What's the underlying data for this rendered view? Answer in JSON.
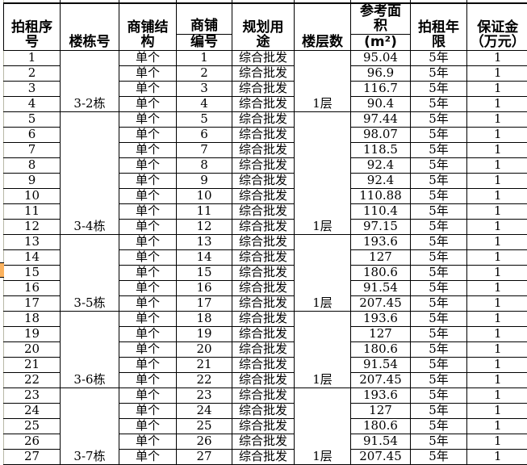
{
  "colors": {
    "red_text": "#e00000",
    "highlight_orange": "#fbb25e",
    "grid_black": "#000000",
    "gridline_gray": "#b9b9a6"
  },
  "table": {
    "headers": {
      "seq": [
        "拍租序",
        "号"
      ],
      "building": [
        "楼栋号"
      ],
      "structure": [
        "商铺结",
        "构"
      ],
      "shop_top": [
        "商铺"
      ],
      "shop_bottom": [
        "编号"
      ],
      "use": [
        "规划用",
        "途"
      ],
      "floors": [
        "楼层数"
      ],
      "area_top": [
        "参考面",
        "积"
      ],
      "area_bottom": [
        "(m²)"
      ],
      "years": [
        "拍租年",
        "限"
      ],
      "deposit": [
        "保证金",
        "（万元）"
      ]
    },
    "building_merges": [
      {
        "label": "3-2栋",
        "from": 1,
        "to": 4
      },
      {
        "label": "3-4栋",
        "from": 5,
        "to": 12
      },
      {
        "label": "3-5栋",
        "from": 13,
        "to": 17
      },
      {
        "label": "3-6栋",
        "from": 18,
        "to": 22
      },
      {
        "label": "3-7栋",
        "from": 23,
        "to": 27
      }
    ],
    "floor_merges": [
      {
        "label": "1层",
        "from": 1,
        "to": 4
      },
      {
        "label": "1层",
        "from": 5,
        "to": 12
      },
      {
        "label": "1层",
        "from": 13,
        "to": 17
      },
      {
        "label": "1层",
        "from": 18,
        "to": 22
      },
      {
        "label": "1层",
        "from": 23,
        "to": 27
      }
    ],
    "rows": [
      {
        "seq": "1",
        "structure": "单个",
        "shop": "1",
        "use": "综合批发",
        "area": "95.04",
        "years": "5年",
        "deposit": "1"
      },
      {
        "seq": "2",
        "structure": "单个",
        "shop": "2",
        "use": "综合批发",
        "area": "96.9",
        "years": "5年",
        "deposit": "1"
      },
      {
        "seq": "3",
        "structure": "单个",
        "shop": "3",
        "use": "综合批发",
        "area": "116.7",
        "years": "5年",
        "deposit": "1"
      },
      {
        "seq": "4",
        "structure": "单个",
        "shop": "4",
        "use": "综合批发",
        "area": "90.4",
        "years": "5年",
        "deposit": "1"
      },
      {
        "seq": "5",
        "structure": "单个",
        "shop": "5",
        "use": "综合批发",
        "area": "97.44",
        "years": "5年",
        "deposit": "1"
      },
      {
        "seq": "6",
        "structure": "单个",
        "shop": "6",
        "use": "综合批发",
        "area": "98.07",
        "years": "5年",
        "deposit": "1"
      },
      {
        "seq": "7",
        "structure": "单个",
        "shop": "7",
        "use": "综合批发",
        "area": "118.5",
        "years": "5年",
        "deposit": "1"
      },
      {
        "seq": "8",
        "structure": "单个",
        "shop": "8",
        "use": "综合批发",
        "area": "92.4",
        "years": "5年",
        "deposit": "1"
      },
      {
        "seq": "9",
        "structure": "单个",
        "shop": "9",
        "use": "综合批发",
        "area": "92.4",
        "years": "5年",
        "deposit": "1"
      },
      {
        "seq": "10",
        "structure": "单个",
        "shop": "10",
        "use": "综合批发",
        "area": "110.88",
        "years": "5年",
        "deposit": "1"
      },
      {
        "seq": "11",
        "structure": "单个",
        "shop": "11",
        "use": "综合批发",
        "area": "110.4",
        "years": "5年",
        "deposit": "1"
      },
      {
        "seq": "12",
        "structure": "单个",
        "shop": "12",
        "use": "综合批发",
        "area": "97.15",
        "years": "5年",
        "deposit": "1"
      },
      {
        "seq": "13",
        "structure": "单个",
        "shop": "13",
        "use": "综合批发",
        "area": "193.6",
        "years": "5年",
        "deposit": "1"
      },
      {
        "seq": "14",
        "structure": "单个",
        "shop": "14",
        "use": "综合批发",
        "area": "127",
        "years": "5年",
        "deposit": "1"
      },
      {
        "seq": "15",
        "structure": "单个",
        "shop": "15",
        "use": "综合批发",
        "area": "180.6",
        "years": "5年",
        "deposit": "1"
      },
      {
        "seq": "16",
        "structure": "单个",
        "shop": "16",
        "use": "综合批发",
        "area": "91.54",
        "years": "5年",
        "deposit": "1"
      },
      {
        "seq": "17",
        "structure": "单个",
        "shop": "17",
        "use": "综合批发",
        "area": "207.45",
        "years": "5年",
        "deposit": "1"
      },
      {
        "seq": "18",
        "structure": "单个",
        "shop": "18",
        "use": "综合批发",
        "area": "193.6",
        "years": "5年",
        "deposit": "1"
      },
      {
        "seq": "19",
        "structure": "单个",
        "shop": "19",
        "use": "综合批发",
        "area": "127",
        "years": "5年",
        "deposit": "1"
      },
      {
        "seq": "20",
        "structure": "单个",
        "shop": "20",
        "use": "综合批发",
        "area": "180.6",
        "years": "5年",
        "deposit": "1"
      },
      {
        "seq": "21",
        "structure": "单个",
        "shop": "21",
        "use": "综合批发",
        "area": "91.54",
        "years": "5年",
        "deposit": "1"
      },
      {
        "seq": "22",
        "structure": "单个",
        "shop": "22",
        "use": "综合批发",
        "area": "207.45",
        "years": "5年",
        "deposit": "1"
      },
      {
        "seq": "23",
        "structure": "单个",
        "shop": "23",
        "use": "综合批发",
        "area": "193.6",
        "years": "5年",
        "deposit": "1"
      },
      {
        "seq": "24",
        "structure": "单个",
        "shop": "24",
        "use": "综合批发",
        "area": "127",
        "years": "5年",
        "deposit": "1"
      },
      {
        "seq": "25",
        "structure": "单个",
        "shop": "25",
        "use": "综合批发",
        "area": "180.6",
        "years": "5年",
        "deposit": "1"
      },
      {
        "seq": "26",
        "structure": "单个",
        "shop": "26",
        "use": "综合批发",
        "area": "91.54",
        "years": "5年",
        "deposit": "1"
      },
      {
        "seq": "27",
        "structure": "单个",
        "shop": "27",
        "use": "综合批发",
        "area": "207.45",
        "years": "5年",
        "deposit": "1"
      }
    ]
  }
}
